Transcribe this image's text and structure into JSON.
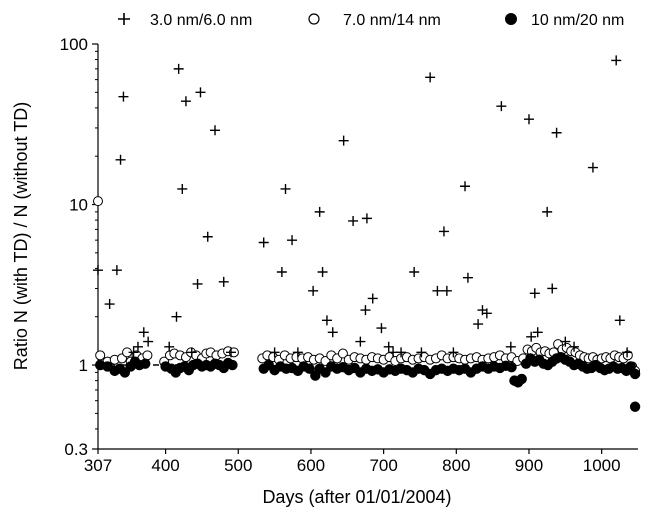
{
  "chart_data": {
    "type": "scatter",
    "title": "",
    "xlabel": "Days (after 01/01/2004)",
    "ylabel": "Ratio N (with TD) / N (without TD)",
    "xlim": [
      307,
      1050
    ],
    "ylim": [
      0.3,
      100
    ],
    "yscale": "log",
    "x_ticks": [
      307,
      400,
      500,
      600,
      700,
      800,
      900,
      1000
    ],
    "x_tick_labels": [
      "307",
      "400",
      "500",
      "600",
      "700",
      "800",
      "900",
      "1000"
    ],
    "y_ticks": [
      0.3,
      1,
      10,
      100
    ],
    "y_tick_labels": [
      "0.3",
      "1",
      "10",
      "100"
    ],
    "grid": false,
    "legend_position": "top",
    "reference_line": {
      "y": 1,
      "style": "dashed",
      "x_range": [
        307,
        500
      ]
    },
    "series": [
      {
        "name": "3.0 nm/6.0 nm",
        "marker": "plus",
        "points": [
          [
            307,
            3.9
          ],
          [
            323,
            2.4
          ],
          [
            333,
            3.9
          ],
          [
            338,
            19
          ],
          [
            342,
            47
          ],
          [
            356,
            1.2
          ],
          [
            362,
            1.3
          ],
          [
            370,
            1.6
          ],
          [
            376,
            1.4
          ],
          [
            405,
            1.3
          ],
          [
            415,
            2.0
          ],
          [
            418,
            70
          ],
          [
            423,
            12.5
          ],
          [
            428,
            44
          ],
          [
            436,
            1.2
          ],
          [
            444,
            3.2
          ],
          [
            448,
            50
          ],
          [
            458,
            6.3
          ],
          [
            468,
            29
          ],
          [
            480,
            3.3
          ],
          [
            490,
            1.2
          ],
          [
            535,
            5.8
          ],
          [
            550,
            1.2
          ],
          [
            560,
            3.8
          ],
          [
            565,
            12.5
          ],
          [
            574,
            6.0
          ],
          [
            582,
            1.2
          ],
          [
            603,
            2.9
          ],
          [
            612,
            9.0
          ],
          [
            616,
            3.8
          ],
          [
            622,
            1.9
          ],
          [
            630,
            1.6
          ],
          [
            645,
            25
          ],
          [
            658,
            7.9
          ],
          [
            668,
            1.4
          ],
          [
            675,
            2.2
          ],
          [
            677,
            8.2
          ],
          [
            685,
            2.6
          ],
          [
            697,
            1.7
          ],
          [
            707,
            1.3
          ],
          [
            713,
            1.2
          ],
          [
            724,
            1.2
          ],
          [
            742,
            3.8
          ],
          [
            752,
            1.2
          ],
          [
            764,
            62
          ],
          [
            774,
            2.9
          ],
          [
            783,
            6.8
          ],
          [
            787,
            2.9
          ],
          [
            796,
            1.2
          ],
          [
            812,
            13
          ],
          [
            816,
            3.5
          ],
          [
            830,
            1.8
          ],
          [
            836,
            2.2
          ],
          [
            842,
            2.1
          ],
          [
            862,
            41
          ],
          [
            875,
            1.3
          ],
          [
            900,
            34
          ],
          [
            903,
            1.5
          ],
          [
            908,
            2.8
          ],
          [
            912,
            1.6
          ],
          [
            925,
            9.0
          ],
          [
            932,
            3.0
          ],
          [
            938,
            28
          ],
          [
            950,
            1.4
          ],
          [
            962,
            1.3
          ],
          [
            988,
            17
          ],
          [
            1020,
            79
          ],
          [
            1025,
            1.9
          ],
          [
            1035,
            1.2
          ]
        ]
      },
      {
        "name": "7.0 nm/14 nm",
        "marker": "open-circle",
        "points": [
          [
            307,
            10.5
          ],
          [
            310,
            1.15
          ],
          [
            320,
            1.05
          ],
          [
            330,
            1.08
          ],
          [
            340,
            1.1
          ],
          [
            347,
            1.2
          ],
          [
            352,
            1.05
          ],
          [
            360,
            1.15
          ],
          [
            368,
            1.1
          ],
          [
            375,
            1.15
          ],
          [
            398,
            1.05
          ],
          [
            406,
            1.15
          ],
          [
            412,
            1.18
          ],
          [
            420,
            1.15
          ],
          [
            428,
            1.12
          ],
          [
            435,
            1.2
          ],
          [
            442,
            1.15
          ],
          [
            450,
            1.1
          ],
          [
            456,
            1.18
          ],
          [
            462,
            1.2
          ],
          [
            470,
            1.15
          ],
          [
            478,
            1.18
          ],
          [
            486,
            1.22
          ],
          [
            494,
            1.2
          ],
          [
            533,
            1.1
          ],
          [
            540,
            1.15
          ],
          [
            548,
            1.12
          ],
          [
            556,
            1.08
          ],
          [
            564,
            1.15
          ],
          [
            572,
            1.1
          ],
          [
            580,
            1.12
          ],
          [
            588,
            1.1
          ],
          [
            596,
            1.12
          ],
          [
            604,
            1.08
          ],
          [
            612,
            1.1
          ],
          [
            620,
            1.06
          ],
          [
            628,
            1.15
          ],
          [
            636,
            1.1
          ],
          [
            644,
            1.18
          ],
          [
            652,
            1.08
          ],
          [
            660,
            1.12
          ],
          [
            668,
            1.1
          ],
          [
            676,
            1.08
          ],
          [
            684,
            1.12
          ],
          [
            692,
            1.1
          ],
          [
            700,
            1.08
          ],
          [
            708,
            1.12
          ],
          [
            716,
            1.06
          ],
          [
            724,
            1.1
          ],
          [
            732,
            1.12
          ],
          [
            740,
            1.08
          ],
          [
            748,
            1.1
          ],
          [
            756,
            1.12
          ],
          [
            764,
            1.08
          ],
          [
            772,
            1.1
          ],
          [
            780,
            1.15
          ],
          [
            788,
            1.1
          ],
          [
            796,
            1.12
          ],
          [
            804,
            1.1
          ],
          [
            812,
            1.08
          ],
          [
            820,
            1.1
          ],
          [
            828,
            1.12
          ],
          [
            836,
            1.08
          ],
          [
            844,
            1.1
          ],
          [
            852,
            1.12
          ],
          [
            860,
            1.15
          ],
          [
            868,
            1.1
          ],
          [
            876,
            1.12
          ],
          [
            884,
            1.06
          ],
          [
            892,
            1.1
          ],
          [
            898,
            1.25
          ],
          [
            904,
            1.22
          ],
          [
            910,
            1.28
          ],
          [
            916,
            1.2
          ],
          [
            922,
            1.22
          ],
          [
            928,
            1.18
          ],
          [
            934,
            1.2
          ],
          [
            940,
            1.35
          ],
          [
            946,
            1.25
          ],
          [
            952,
            1.28
          ],
          [
            958,
            1.22
          ],
          [
            964,
            1.2
          ],
          [
            970,
            1.15
          ],
          [
            976,
            1.12
          ],
          [
            982,
            1.1
          ],
          [
            988,
            1.12
          ],
          [
            994,
            1.08
          ],
          [
            1000,
            1.1
          ],
          [
            1006,
            1.12
          ],
          [
            1012,
            1.1
          ],
          [
            1018,
            1.15
          ],
          [
            1024,
            1.12
          ],
          [
            1030,
            1.1
          ],
          [
            1036,
            1.15
          ],
          [
            1042,
            0.98
          ],
          [
            1046,
            0.92
          ]
        ]
      },
      {
        "name": "10 nm/20 nm",
        "marker": "filled-circle",
        "points": [
          [
            310,
            1.0
          ],
          [
            320,
            0.98
          ],
          [
            330,
            0.92
          ],
          [
            337,
            0.95
          ],
          [
            344,
            0.9
          ],
          [
            352,
            0.98
          ],
          [
            358,
            1.05
          ],
          [
            364,
            1.0
          ],
          [
            372,
            1.02
          ],
          [
            400,
            0.98
          ],
          [
            408,
            0.95
          ],
          [
            414,
            0.9
          ],
          [
            420,
            0.96
          ],
          [
            426,
            0.98
          ],
          [
            432,
            0.93
          ],
          [
            438,
            1.0
          ],
          [
            444,
            1.02
          ],
          [
            450,
            0.98
          ],
          [
            456,
            1.0
          ],
          [
            462,
            0.98
          ],
          [
            468,
            1.02
          ],
          [
            474,
            1.0
          ],
          [
            480,
            0.96
          ],
          [
            486,
            1.03
          ],
          [
            492,
            1.0
          ],
          [
            535,
            0.95
          ],
          [
            542,
            1.0
          ],
          [
            550,
            0.93
          ],
          [
            558,
            0.98
          ],
          [
            566,
            0.95
          ],
          [
            574,
            0.96
          ],
          [
            582,
            0.92
          ],
          [
            590,
            0.98
          ],
          [
            598,
            0.95
          ],
          [
            606,
            0.86
          ],
          [
            612,
            0.95
          ],
          [
            620,
            0.9
          ],
          [
            628,
            0.98
          ],
          [
            636,
            0.95
          ],
          [
            644,
            0.97
          ],
          [
            652,
            0.93
          ],
          [
            660,
            0.96
          ],
          [
            668,
            0.9
          ],
          [
            676,
            0.95
          ],
          [
            684,
            0.92
          ],
          [
            692,
            0.94
          ],
          [
            700,
            0.9
          ],
          [
            708,
            0.94
          ],
          [
            716,
            0.92
          ],
          [
            724,
            0.95
          ],
          [
            732,
            0.93
          ],
          [
            740,
            0.9
          ],
          [
            748,
            0.95
          ],
          [
            756,
            0.93
          ],
          [
            764,
            0.88
          ],
          [
            772,
            0.93
          ],
          [
            780,
            0.95
          ],
          [
            788,
            0.92
          ],
          [
            796,
            0.95
          ],
          [
            804,
            0.93
          ],
          [
            812,
            0.95
          ],
          [
            820,
            0.9
          ],
          [
            828,
            0.95
          ],
          [
            836,
            0.98
          ],
          [
            844,
            0.95
          ],
          [
            852,
            0.98
          ],
          [
            860,
            0.96
          ],
          [
            868,
            0.99
          ],
          [
            876,
            0.97
          ],
          [
            880,
            0.8
          ],
          [
            885,
            0.78
          ],
          [
            890,
            0.82
          ],
          [
            896,
            1.02
          ],
          [
            902,
            1.1
          ],
          [
            908,
            1.05
          ],
          [
            914,
            1.08
          ],
          [
            920,
            1.02
          ],
          [
            926,
            1.0
          ],
          [
            932,
            1.05
          ],
          [
            938,
            1.1
          ],
          [
            944,
            1.12
          ],
          [
            950,
            1.08
          ],
          [
            956,
            1.05
          ],
          [
            962,
            1.0
          ],
          [
            968,
            1.02
          ],
          [
            974,
            0.98
          ],
          [
            980,
            0.95
          ],
          [
            986,
            0.96
          ],
          [
            992,
            1.0
          ],
          [
            998,
            0.96
          ],
          [
            1004,
            0.93
          ],
          [
            1010,
            0.95
          ],
          [
            1016,
            0.98
          ],
          [
            1022,
            0.95
          ],
          [
            1028,
            0.96
          ],
          [
            1034,
            0.92
          ],
          [
            1040,
            0.98
          ],
          [
            1046,
            0.88
          ],
          [
            1046,
            0.55
          ]
        ]
      }
    ]
  }
}
